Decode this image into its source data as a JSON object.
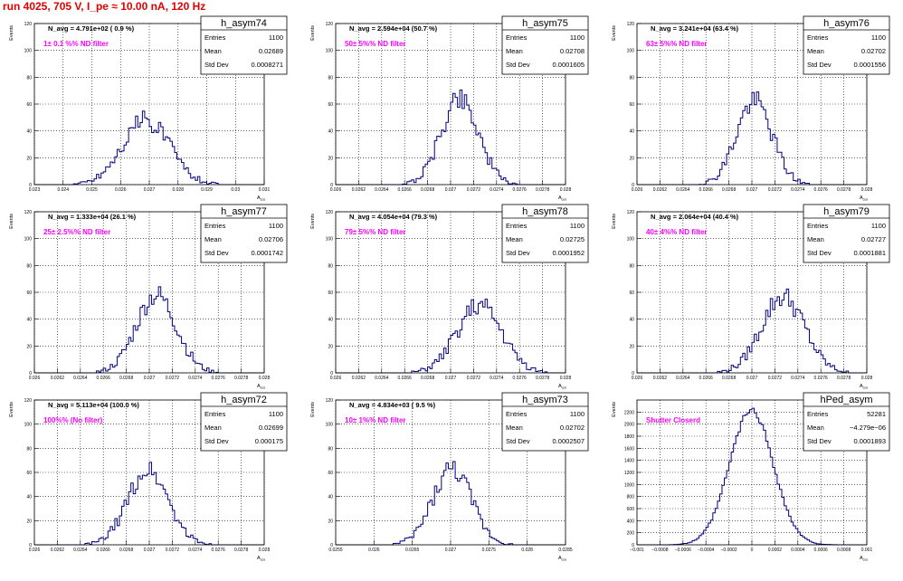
{
  "header": {
    "title": "run 4025,   705 V, I_pe ≈ 10.00 nA, 120 Hz"
  },
  "stat_labels": {
    "entries": "Entries",
    "mean": "Mean",
    "std": "Std Dev"
  },
  "axis": {
    "y": "Events",
    "x": "A",
    "x_sub": "cos"
  },
  "panels": [
    {
      "hist_name": "h_asym74",
      "entries": "1100",
      "mean": "0.02689",
      "std": "0.0008271",
      "navg": "N_avg = 4.791e+02 ( 0.9 %)",
      "filter": "1± 0.1 %% ND filter",
      "chart_data": {
        "type": "histogram",
        "xlim": [
          0.023,
          0.031
        ],
        "ylim": [
          0,
          120
        ],
        "xticks": [
          "0.023",
          "0.024",
          "0.025",
          "0.026",
          "0.027",
          "0.028",
          "0.029",
          "0.03",
          "0.031"
        ],
        "yticks": [
          "0",
          "20",
          "40",
          "60",
          "80",
          "100",
          "120"
        ],
        "mean": 0.02689,
        "std": 0.0008271,
        "peak": 48,
        "seed": 74
      }
    },
    {
      "hist_name": "h_asym75",
      "entries": "1100",
      "mean": "0.02708",
      "std": "0.0001605",
      "navg": "N_avg = 2.594e+04 (50.7 %)",
      "filter": "50± 5%% ND filter",
      "chart_data": {
        "type": "histogram",
        "xlim": [
          0.026,
          0.028
        ],
        "ylim": [
          0,
          120
        ],
        "xticks": [
          "0.026",
          "0.0262",
          "0.0264",
          "0.0266",
          "0.0268",
          "0.027",
          "0.0272",
          "0.0274",
          "0.0276",
          "0.0278",
          "0.028"
        ],
        "yticks": [
          "0",
          "20",
          "40",
          "60",
          "80",
          "100",
          "120"
        ],
        "mean": 0.02708,
        "std": 0.0001605,
        "peak": 65,
        "seed": 75
      }
    },
    {
      "hist_name": "h_asym76",
      "entries": "1100",
      "mean": "0.02702",
      "std": "0.0001556",
      "navg": "N_avg = 3.241e+04 (63.4 %)",
      "filter": "63± 5%% ND filter",
      "chart_data": {
        "type": "histogram",
        "xlim": [
          0.026,
          0.028
        ],
        "ylim": [
          0,
          120
        ],
        "xticks": [
          "0.026",
          "0.0262",
          "0.0264",
          "0.0266",
          "0.0268",
          "0.027",
          "0.0272",
          "0.0274",
          "0.0276",
          "0.0278",
          "0.028"
        ],
        "yticks": [
          "0",
          "20",
          "40",
          "60",
          "80",
          "100",
          "120"
        ],
        "mean": 0.02702,
        "std": 0.0001556,
        "peak": 62,
        "seed": 76
      }
    },
    {
      "hist_name": "h_asym77",
      "entries": "1100",
      "mean": "0.02706",
      "std": "0.0001742",
      "navg": "N_avg = 1.333e+04 (26.1 %)",
      "filter": "25± 2.5%% ND filter",
      "chart_data": {
        "type": "histogram",
        "xlim": [
          0.026,
          0.028
        ],
        "ylim": [
          0,
          120
        ],
        "xticks": [
          "0.026",
          "0.0262",
          "0.0264",
          "0.0266",
          "0.0268",
          "0.027",
          "0.0272",
          "0.0274",
          "0.0276",
          "0.0278",
          "0.028"
        ],
        "yticks": [
          "0",
          "20",
          "40",
          "60",
          "80",
          "100",
          "120"
        ],
        "mean": 0.02706,
        "std": 0.0001742,
        "peak": 58,
        "seed": 77
      }
    },
    {
      "hist_name": "h_asym78",
      "entries": "1100",
      "mean": "0.02725",
      "std": "0.0001952",
      "navg": "N_avg = 4.054e+04 (79.3 %)",
      "filter": "79± 5%% ND filter",
      "chart_data": {
        "type": "histogram",
        "xlim": [
          0.026,
          0.028
        ],
        "ylim": [
          0,
          120
        ],
        "xticks": [
          "0.026",
          "0.0262",
          "0.0264",
          "0.0266",
          "0.0268",
          "0.027",
          "0.0272",
          "0.0274",
          "0.0276",
          "0.0278",
          "0.028"
        ],
        "yticks": [
          "0",
          "20",
          "40",
          "60",
          "80",
          "100",
          "120"
        ],
        "mean": 0.02725,
        "std": 0.0001952,
        "peak": 50,
        "seed": 78
      }
    },
    {
      "hist_name": "h_asym79",
      "entries": "1100",
      "mean": "0.02727",
      "std": "0.0001881",
      "navg": "N_avg = 2.064e+04 (40.4 %)",
      "filter": "40± 4%% ND filter",
      "chart_data": {
        "type": "histogram",
        "xlim": [
          0.026,
          0.028
        ],
        "ylim": [
          0,
          120
        ],
        "xticks": [
          "0.026",
          "0.0262",
          "0.0264",
          "0.0266",
          "0.0268",
          "0.027",
          "0.0272",
          "0.0274",
          "0.0276",
          "0.0278",
          "0.028"
        ],
        "yticks": [
          "0",
          "20",
          "40",
          "60",
          "80",
          "100",
          "120"
        ],
        "mean": 0.02727,
        "std": 0.0001881,
        "peak": 57,
        "seed": 79
      }
    },
    {
      "hist_name": "h_asym72",
      "entries": "1100",
      "mean": "0.02699",
      "std": "0.000175",
      "navg": "N_avg = 5.113e+04 (100.0 %)",
      "filter": "100%% (No filter)",
      "chart_data": {
        "type": "histogram",
        "xlim": [
          0.026,
          0.028
        ],
        "ylim": [
          0,
          120
        ],
        "xticks": [
          "0.026",
          "0.0262",
          "0.0264",
          "0.0266",
          "0.0268",
          "0.027",
          "0.0272",
          "0.0274",
          "0.0276",
          "0.0278",
          "0.028"
        ],
        "yticks": [
          "0",
          "20",
          "40",
          "60",
          "80",
          "100",
          "120"
        ],
        "mean": 0.02699,
        "std": 0.000175,
        "peak": 62,
        "seed": 72
      }
    },
    {
      "hist_name": "h_asym73",
      "entries": "1100",
      "mean": "0.02702",
      "std": "0.0002507",
      "navg": "N_avg = 4.834e+03 ( 9.5 %)",
      "filter": "10± 1%% ND filter",
      "chart_data": {
        "type": "histogram",
        "xlim": [
          0.0255,
          0.0285
        ],
        "ylim": [
          0,
          120
        ],
        "xticks": [
          "0.0255",
          "0.026",
          "0.0265",
          "0.027",
          "0.0275",
          "0.028",
          "0.0285"
        ],
        "yticks": [
          "0",
          "20",
          "40",
          "60",
          "80",
          "100",
          "120"
        ],
        "mean": 0.02702,
        "std": 0.0002507,
        "peak": 63,
        "seed": 73
      }
    },
    {
      "hist_name": "hPed_asym",
      "entries": "52281",
      "mean": "−4.279e−06",
      "std": "0.0001893",
      "navg": "",
      "filter": "Shutter Closerd",
      "chart_data": {
        "type": "histogram",
        "xlim": [
          -0.001,
          0.001
        ],
        "ylim": [
          0,
          2400
        ],
        "xticks": [
          "−0.001",
          "−0.0008",
          "−0.0006",
          "−0.0004",
          "−0.0002",
          "0",
          "0.0002",
          "0.0004",
          "0.0006",
          "0.0008",
          "0.001"
        ],
        "yticks": [
          "0",
          "200",
          "400",
          "600",
          "800",
          "1000",
          "1200",
          "1400",
          "1600",
          "1800",
          "2000",
          "2200"
        ],
        "mean": -4.279e-06,
        "std": 0.0001893,
        "peak": 2230,
        "seed": 99
      }
    }
  ]
}
